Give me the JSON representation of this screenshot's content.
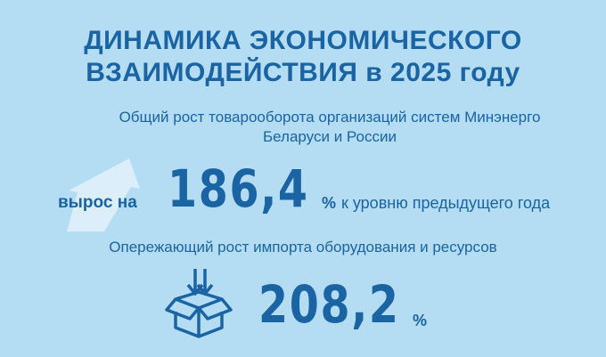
{
  "title_line1": "ДИНАМИКА ЭКОНОМИЧЕСКОГО",
  "title_line2": "ВЗАИМОДЕЙСТВИЯ в 2025 году",
  "turnover": {
    "caption_line1": "Общий рост товарооборота организаций систем Минэнерго",
    "caption_line2": "Беларуси и России",
    "prefix": "вырос на",
    "value": "186,4",
    "unit": "%",
    "suffix": "к уровню предыдущего года",
    "icon": "up-arrow-icon"
  },
  "import": {
    "caption": "Опережающий рост импорта оборудования и ресурсов",
    "value": "208,2",
    "unit": "%",
    "icon": "box-with-arrows-icon"
  },
  "colors": {
    "background": "#b4dcf3",
    "text": "#1a64a3"
  }
}
